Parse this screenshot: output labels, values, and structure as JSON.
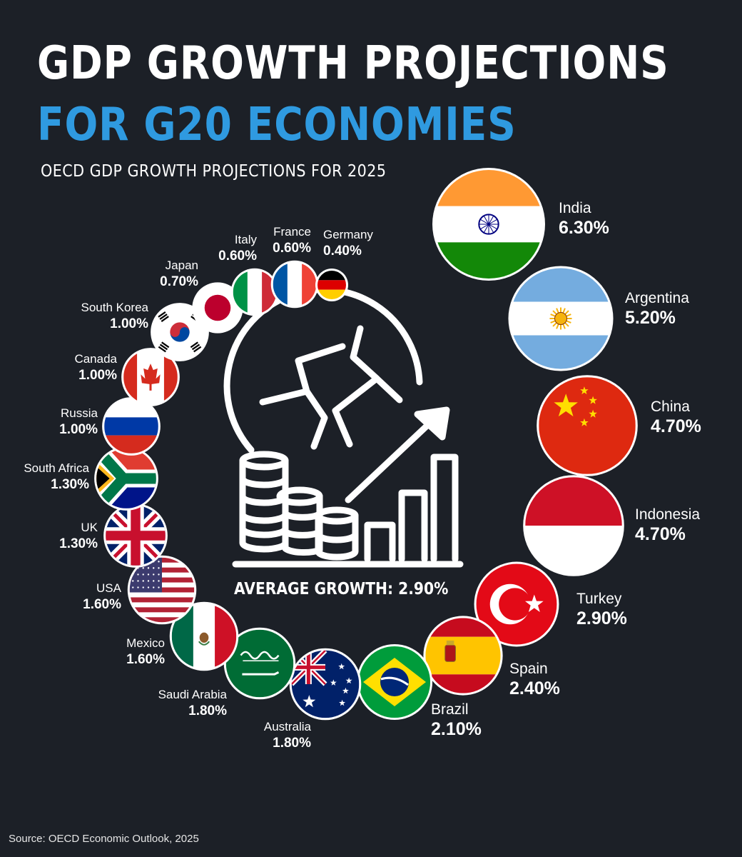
{
  "header": {
    "title_line1": "GDP GROWTH PROJECTIONS",
    "title_line2": "FOR G20 ECONOMIES",
    "subtitle": "OECD GDP GROWTH PROJECTIONS FOR 2025"
  },
  "center": {
    "average_label": "AVERAGE GROWTH: 2.90%",
    "icon": "globe-coins-growth-icon"
  },
  "footer": {
    "source": "Source: OECD Economic Outlook, 2025"
  },
  "colors": {
    "background": "#1c2027",
    "accent": "#2f9ae0",
    "text": "#ffffff"
  },
  "chart_data": {
    "type": "bubble",
    "unit": "%",
    "average": 2.9,
    "items": [
      {
        "country": "India",
        "value": 6.3,
        "label": "6.30%",
        "flag": "india-flag-icon"
      },
      {
        "country": "Argentina",
        "value": 5.2,
        "label": "5.20%",
        "flag": "argentina-flag-icon"
      },
      {
        "country": "China",
        "value": 4.7,
        "label": "4.70%",
        "flag": "china-flag-icon"
      },
      {
        "country": "Indonesia",
        "value": 4.7,
        "label": "4.70%",
        "flag": "indonesia-flag-icon"
      },
      {
        "country": "Turkey",
        "value": 2.9,
        "label": "2.90%",
        "flag": "turkey-flag-icon"
      },
      {
        "country": "Spain",
        "value": 2.4,
        "label": "2.40%",
        "flag": "spain-flag-icon"
      },
      {
        "country": "Brazil",
        "value": 2.1,
        "label": "2.10%",
        "flag": "brazil-flag-icon"
      },
      {
        "country": "Australia",
        "value": 1.8,
        "label": "1.80%",
        "flag": "australia-flag-icon"
      },
      {
        "country": "Saudi Arabia",
        "value": 1.8,
        "label": "1.80%",
        "flag": "saudi-arabia-flag-icon"
      },
      {
        "country": "Mexico",
        "value": 1.6,
        "label": "1.60%",
        "flag": "mexico-flag-icon"
      },
      {
        "country": "USA",
        "value": 1.6,
        "label": "1.60%",
        "flag": "usa-flag-icon"
      },
      {
        "country": "UK",
        "value": 1.3,
        "label": "1.30%",
        "flag": "uk-flag-icon"
      },
      {
        "country": "South Africa",
        "value": 1.3,
        "label": "1.30%",
        "flag": "south-africa-flag-icon"
      },
      {
        "country": "Russia",
        "value": 1.0,
        "label": "1.00%",
        "flag": "russia-flag-icon"
      },
      {
        "country": "Canada",
        "value": 1.0,
        "label": "1.00%",
        "flag": "canada-flag-icon"
      },
      {
        "country": "South Korea",
        "value": 1.0,
        "label": "1.00%",
        "flag": "south-korea-flag-icon"
      },
      {
        "country": "Japan",
        "value": 0.7,
        "label": "0.70%",
        "flag": "japan-flag-icon"
      },
      {
        "country": "Italy",
        "value": 0.6,
        "label": "0.60%",
        "flag": "italy-flag-icon"
      },
      {
        "country": "France",
        "value": 0.6,
        "label": "0.60%",
        "flag": "france-flag-icon"
      },
      {
        "country": "Germany",
        "value": 0.4,
        "label": "0.40%",
        "flag": "germany-flag-icon"
      }
    ]
  }
}
